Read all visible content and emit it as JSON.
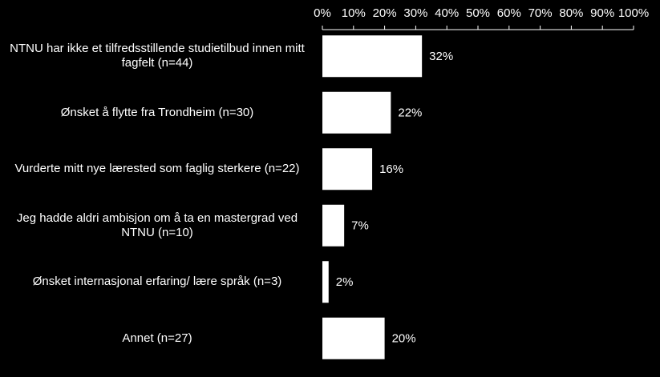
{
  "chart_data": {
    "type": "bar",
    "orientation": "horizontal",
    "categories": [
      "NTNU har ikke et tilfredsstillende studietilbud innen mitt fagfelt (n=44)",
      "Ønsket å flytte fra Trondheim (n=30)",
      "Vurderte mitt nye lærested som faglig sterkere (n=22)",
      "Jeg hadde aldri ambisjon om å ta en mastergrad ved NTNU (n=10)",
      "Ønsket internasjonal erfaring/ lære språk (n=3)",
      "Annet (n=27)"
    ],
    "values": [
      32,
      22,
      16,
      7,
      2,
      20
    ],
    "value_labels": [
      "32%",
      "22%",
      "16%",
      "7%",
      "2%",
      "20%"
    ],
    "color": "#ffffff",
    "xlim": [
      0,
      100
    ],
    "xticks": [
      {
        "value": 0,
        "label": "0%"
      },
      {
        "value": 10,
        "label": "10%"
      },
      {
        "value": 20,
        "label": "20%"
      },
      {
        "value": 30,
        "label": "30%"
      },
      {
        "value": 40,
        "label": "40%"
      },
      {
        "value": 50,
        "label": "50%"
      },
      {
        "value": 60,
        "label": "60%"
      },
      {
        "value": 70,
        "label": "70%"
      },
      {
        "value": 80,
        "label": "80%"
      },
      {
        "value": 90,
        "label": "90%"
      },
      {
        "value": 100,
        "label": "100%"
      }
    ]
  }
}
